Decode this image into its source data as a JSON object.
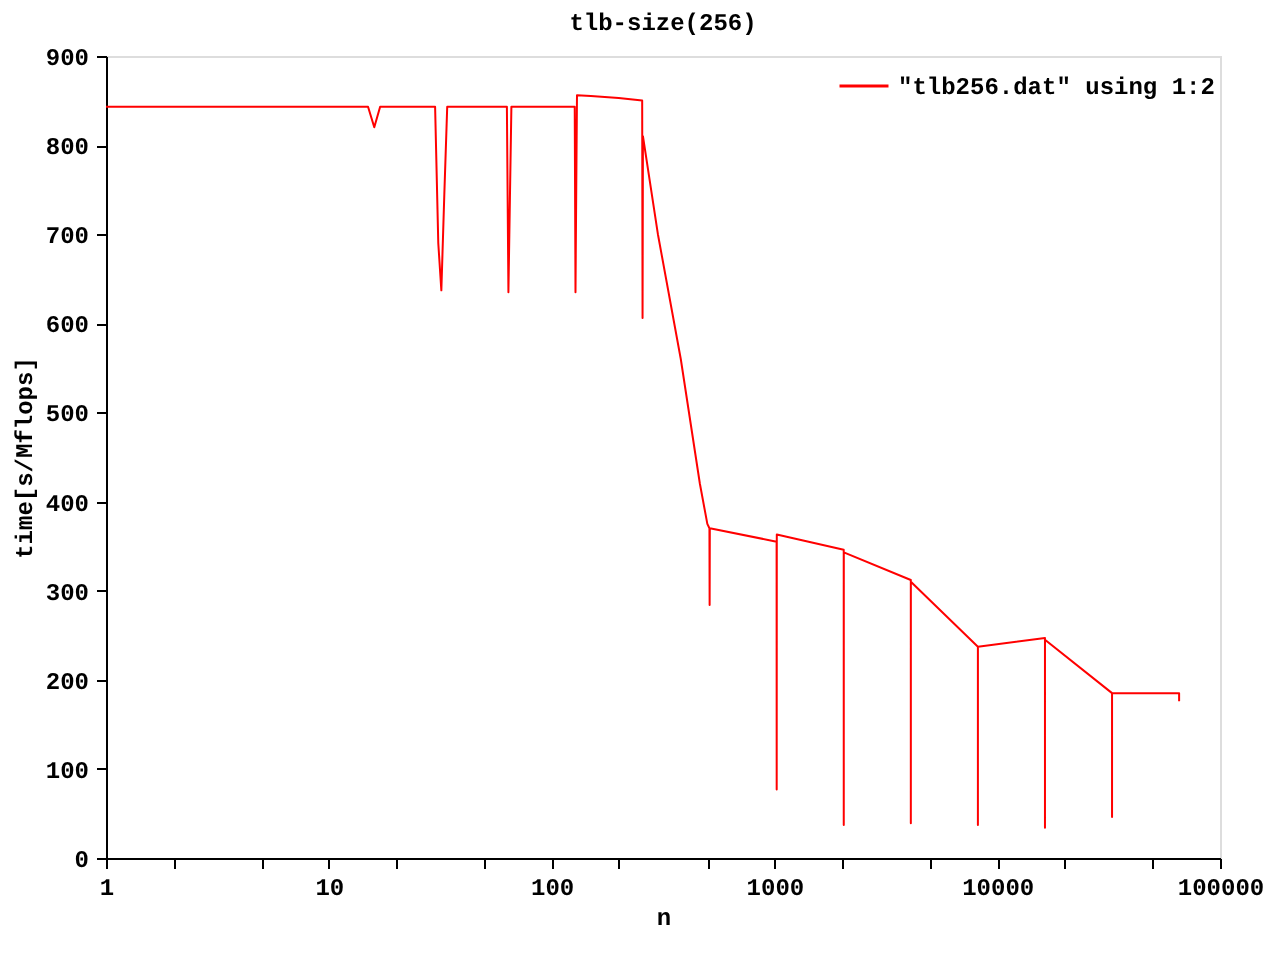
{
  "chart_data": {
    "type": "line",
    "title": "tlb-size(256)",
    "xlabel": "n",
    "ylabel": "time[s/Mflops]",
    "log": "x",
    "xlim": [
      1,
      100000
    ],
    "ylim": [
      0,
      900
    ],
    "xticks": [
      1,
      {
        "value": 2,
        "label": null
      },
      {
        "value": 5,
        "label": null
      },
      10,
      {
        "value": 20,
        "label": null
      },
      {
        "value": 50,
        "label": null
      },
      100,
      {
        "value": 200,
        "label": null
      },
      {
        "value": 500,
        "label": null
      },
      1000,
      {
        "value": 2000,
        "label": null
      },
      {
        "value": 5000,
        "label": null
      },
      10000,
      {
        "value": 20000,
        "label": null
      },
      {
        "value": 50000,
        "label": null
      },
      100000
    ],
    "yticks": [
      0,
      100,
      200,
      300,
      400,
      500,
      600,
      700,
      800,
      900
    ],
    "grid": false,
    "legend": "top right",
    "marker": "none",
    "line_style": "solid",
    "series": [
      {
        "name": "\"tlb256.dat\" using 1:2",
        "color": "#ff0000",
        "x": [
          1,
          15,
          16,
          17,
          30,
          31,
          32,
          33,
          34,
          63,
          64,
          65,
          66,
          127,
          128,
          129,
          130,
          150,
          200,
          255,
          256,
          257,
          300,
          380,
          463,
          500,
          511,
          512,
          513,
          1023,
          1024,
          1025,
          2047,
          2048,
          2049,
          4095,
          4096,
          4097,
          8191,
          8192,
          8193,
          16383,
          16384,
          16385,
          32767,
          32768,
          32769,
          65536,
          65537
        ],
        "values": [
          843,
          843,
          820,
          843,
          843,
          690,
          637,
          745,
          843,
          843,
          635,
          740,
          843,
          843,
          635,
          750,
          856,
          855,
          853,
          850,
          606,
          810,
          700,
          560,
          420,
          375,
          370,
          284,
          370,
          355,
          77,
          363,
          346,
          37,
          343,
          312,
          39,
          310,
          237,
          37,
          237,
          247,
          34,
          245,
          185,
          46,
          185,
          185,
          176
        ]
      }
    ]
  }
}
